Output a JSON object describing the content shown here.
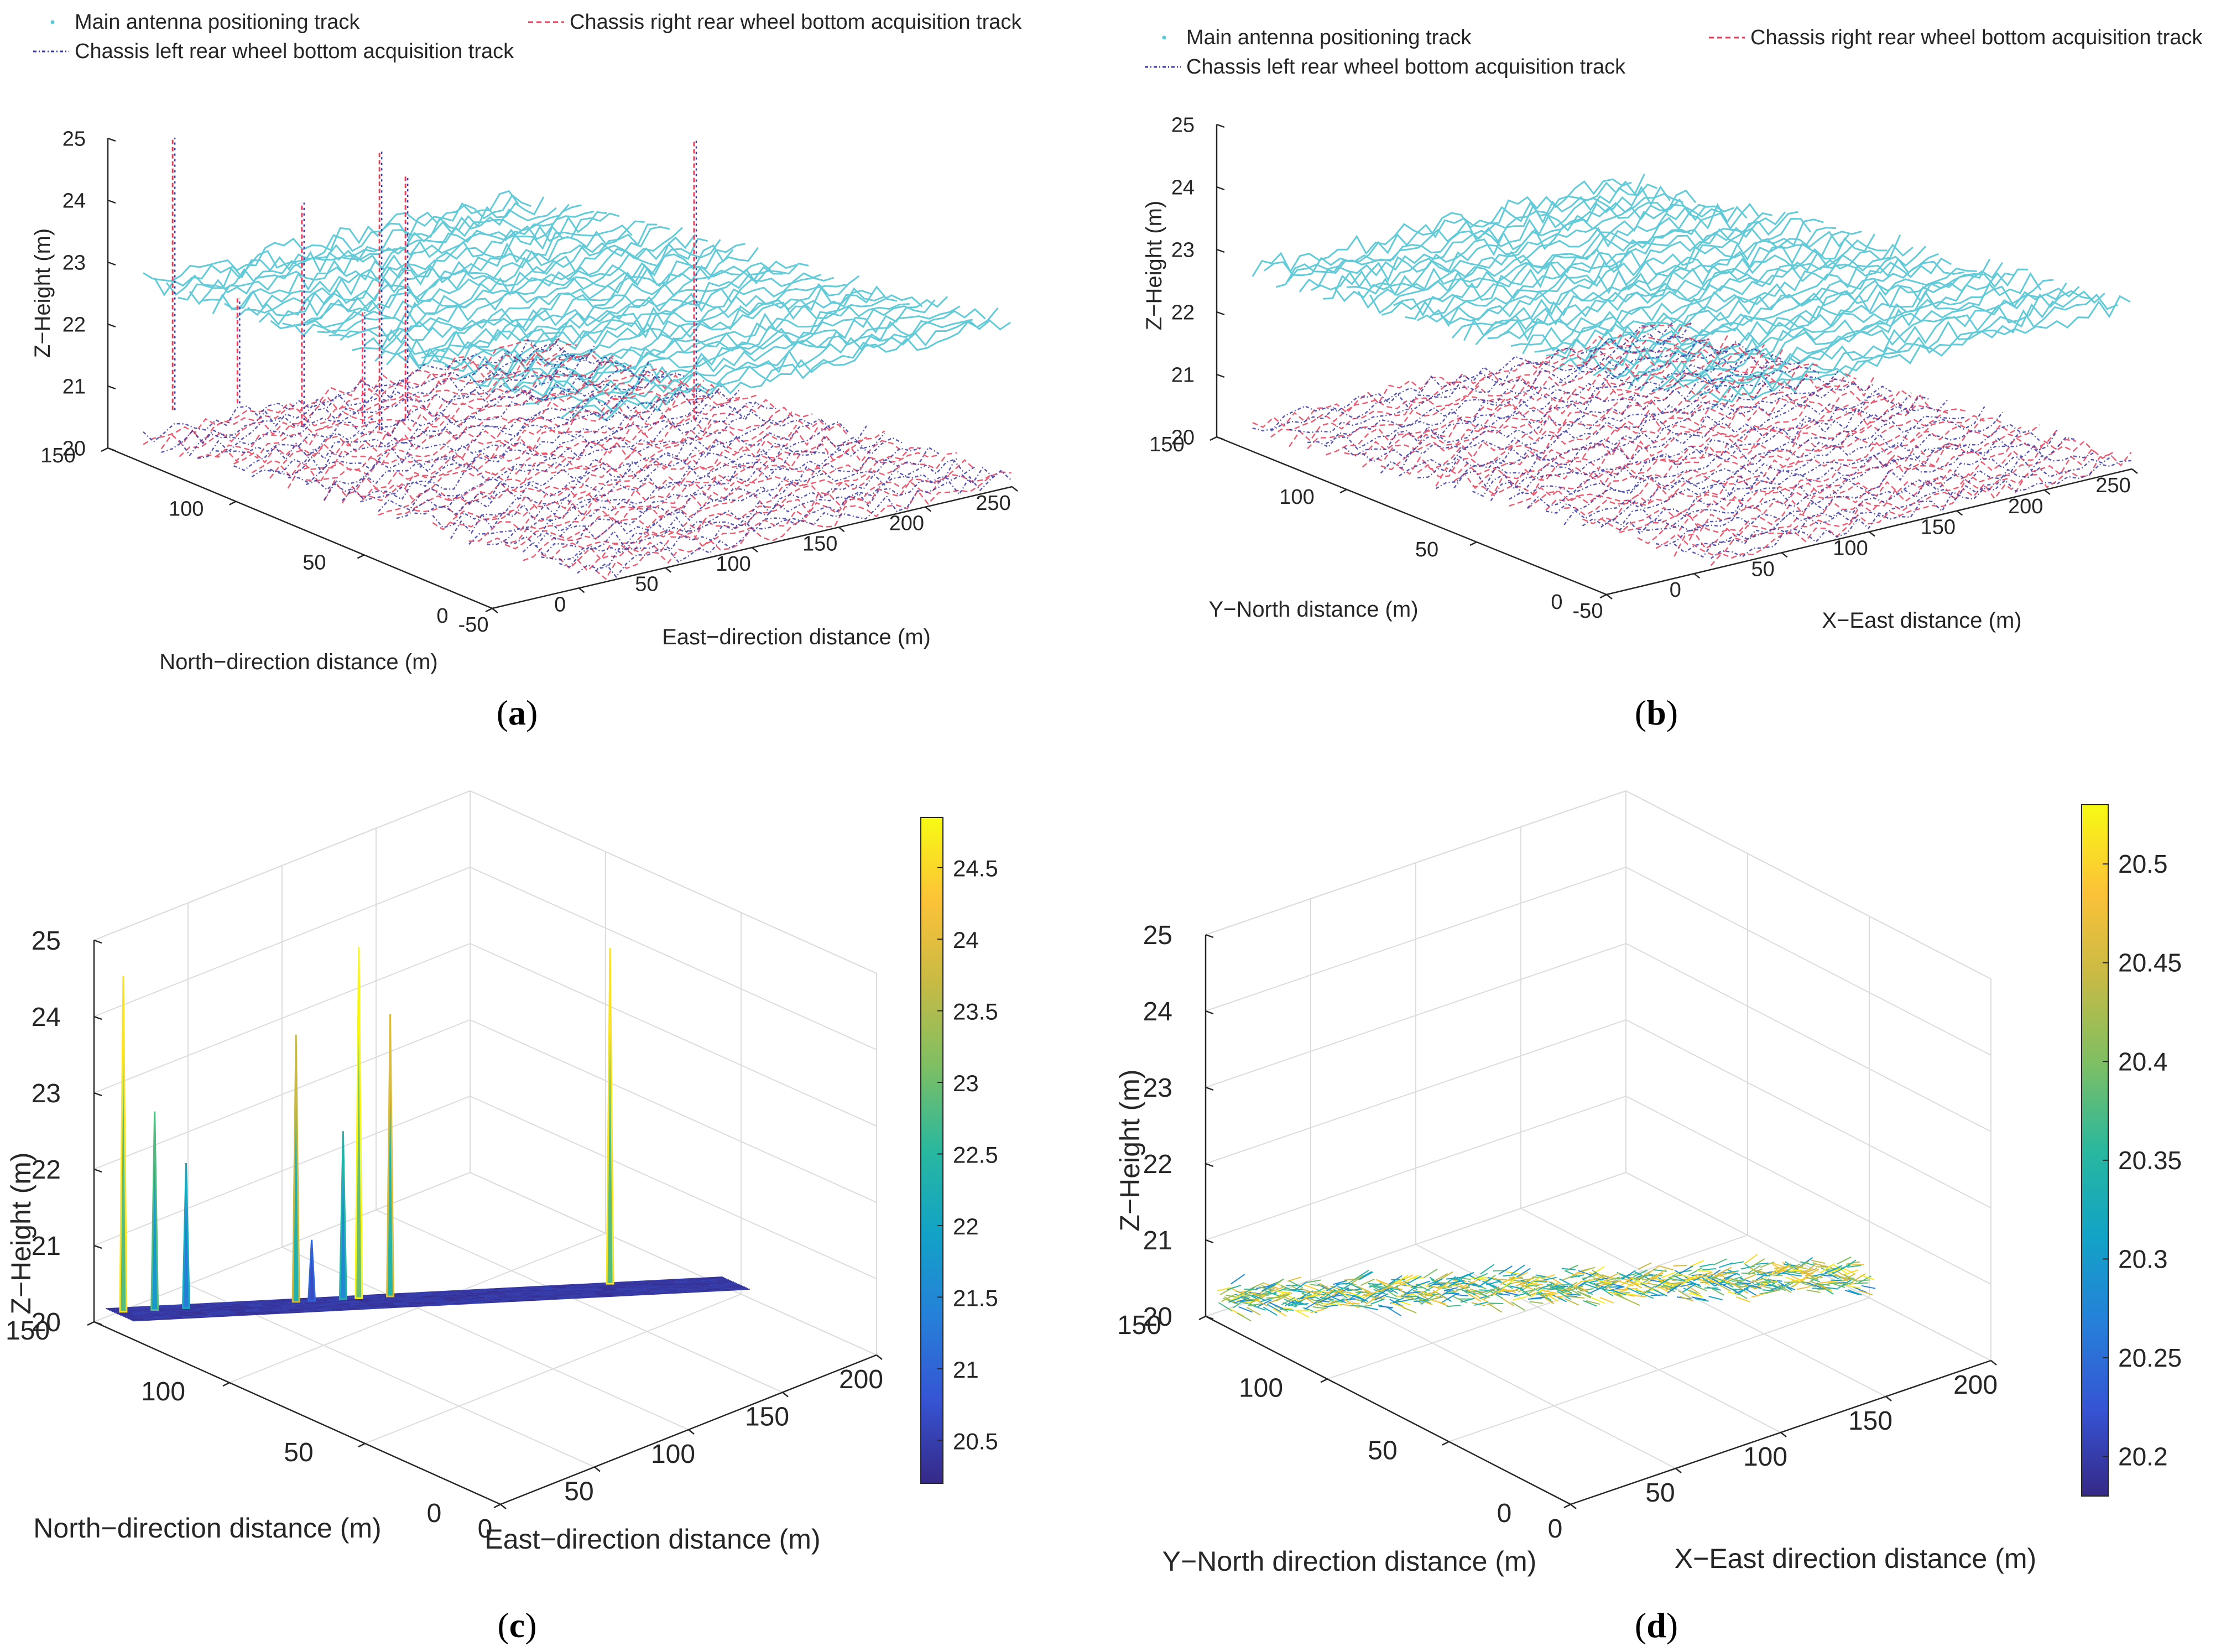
{
  "chart_data": [
    {
      "panel": "a",
      "caption": {
        "open": "(",
        "letter": "a",
        "close": ")"
      },
      "type": "scatter",
      "legend": [
        "Main antenna positioning track",
        "Chassis right rear wheel bottom acquisition track",
        "Chassis left rear wheel bottom acquisition track"
      ],
      "legend_placement": "top",
      "series": [
        {
          "name": "Main antenna positioning track",
          "color": "#5bc8d6",
          "z_level": 22.6
        },
        {
          "name": "Chassis right rear wheel bottom acquisition track",
          "color": "#e8405a",
          "z_level": 20.1
        },
        {
          "name": "Chassis left rear wheel bottom acquisition track",
          "color": "#3b3ba8",
          "z_level": 20.1
        }
      ],
      "xlabel": "East−direction distance (m)",
      "ylabel": "North−direction distance (m)",
      "zlabel": "Z−Height (m)",
      "xlim": [
        -50,
        250
      ],
      "ylim": [
        0,
        150
      ],
      "zlim": [
        20,
        25
      ],
      "xticks": [
        "-50",
        "0",
        "50",
        "100",
        "150",
        "200",
        "250"
      ],
      "yticks": [
        "0",
        "50",
        "100",
        "150"
      ],
      "zticks": [
        "20",
        "21",
        "22",
        "23",
        "24",
        "25"
      ],
      "grid": false,
      "spikes": [
        {
          "x": -20,
          "y": 145,
          "z_low": 20.5,
          "z_high": 24.9
        },
        {
          "x": 25,
          "y": 125,
          "z_low": 20.3,
          "z_high": 23.9
        },
        {
          "x": 55,
          "y": 115,
          "z_low": 20.2,
          "z_high": 24.7
        },
        {
          "x": 70,
          "y": 115,
          "z_low": 20.3,
          "z_high": 24.2
        },
        {
          "x": 170,
          "y": 70,
          "z_low": 20.4,
          "z_high": 24.9
        },
        {
          "x": 10,
          "y": 140,
          "z_low": 20.5,
          "z_high": 22.2
        },
        {
          "x": 60,
          "y": 125,
          "z_low": 20.1,
          "z_high": 21.9
        }
      ]
    },
    {
      "panel": "b",
      "caption": {
        "open": "(",
        "letter": "b",
        "close": ")"
      },
      "type": "scatter",
      "legend": [
        "Main antenna positioning track",
        "Chassis right rear wheel bottom acquisition track",
        "Chassis left rear wheel bottom acquisition track"
      ],
      "legend_placement": "top",
      "series": [
        {
          "name": "Main antenna positioning track",
          "color": "#5bc8d6",
          "z_level": 22.6
        },
        {
          "name": "Chassis right rear wheel bottom acquisition track",
          "color": "#e8405a",
          "z_level": 20.1
        },
        {
          "name": "Chassis left rear wheel bottom acquisition track",
          "color": "#3b3ba8",
          "z_level": 20.1
        }
      ],
      "xlabel": "X−East distance (m)",
      "ylabel": "Y−North distance (m)",
      "zlabel": "Z−Height (m)",
      "xlim": [
        -50,
        250
      ],
      "ylim": [
        0,
        150
      ],
      "zlim": [
        20,
        25
      ],
      "xticks": [
        "-50",
        "0",
        "50",
        "100",
        "150",
        "200",
        "250"
      ],
      "yticks": [
        "0",
        "50",
        "100",
        "150"
      ],
      "zticks": [
        "20",
        "21",
        "22",
        "23",
        "24",
        "25"
      ],
      "grid": false,
      "spikes": []
    },
    {
      "panel": "c",
      "caption": {
        "open": "(",
        "letter": "c",
        "close": ")"
      },
      "type": "heatmap",
      "xlabel": "East−direction distance (m)",
      "ylabel": "North−direction distance (m)",
      "zlabel": "Z−Height (m)",
      "xlim": [
        0,
        200
      ],
      "ylim": [
        0,
        150
      ],
      "zlim": [
        20,
        25
      ],
      "xticks": [
        "0",
        "50",
        "100",
        "150",
        "200"
      ],
      "yticks": [
        "0",
        "50",
        "100",
        "150"
      ],
      "zticks": [
        "20",
        "21",
        "22",
        "23",
        "24",
        "25"
      ],
      "grid": true,
      "colorbar": {
        "min": 20.2,
        "max": 24.85,
        "ticks": [
          "20.5",
          "21",
          "21.5",
          "22",
          "22.5",
          "23",
          "23.5",
          "24",
          "24.5"
        ]
      },
      "surface_level": 20.2,
      "spikes": [
        {
          "x": 5,
          "y": 125,
          "z": 24.6
        },
        {
          "x": 15,
          "y": 95,
          "z": 22.8
        },
        {
          "x": 25,
          "y": 100,
          "z": 22.1
        },
        {
          "x": 60,
          "y": 95,
          "z": 23.7
        },
        {
          "x": 65,
          "y": 85,
          "z": 21.0
        },
        {
          "x": 75,
          "y": 75,
          "z": 22.4
        },
        {
          "x": 80,
          "y": 80,
          "z": 24.8
        },
        {
          "x": 90,
          "y": 85,
          "z": 23.9
        },
        {
          "x": 160,
          "y": 40,
          "z": 24.6
        }
      ]
    },
    {
      "panel": "d",
      "caption": {
        "open": "(",
        "letter": "d",
        "close": ")"
      },
      "type": "heatmap",
      "xlabel": "X−East direction distance (m)",
      "ylabel": "Y−North direction distance (m)",
      "zlabel": "Z−Height (m)",
      "xlim": [
        0,
        200
      ],
      "ylim": [
        0,
        150
      ],
      "zlim": [
        20,
        25
      ],
      "xticks": [
        "0",
        "50",
        "100",
        "150",
        "200"
      ],
      "yticks": [
        "0",
        "50",
        "100",
        "150"
      ],
      "zticks": [
        "20",
        "21",
        "22",
        "23",
        "24",
        "25"
      ],
      "grid": true,
      "colorbar": {
        "min": 20.18,
        "max": 20.53,
        "ticks": [
          "20.2",
          "20.25",
          "20.3",
          "20.35",
          "20.4",
          "20.45",
          "20.5"
        ]
      },
      "surface_level": 20.35,
      "spikes": []
    }
  ]
}
